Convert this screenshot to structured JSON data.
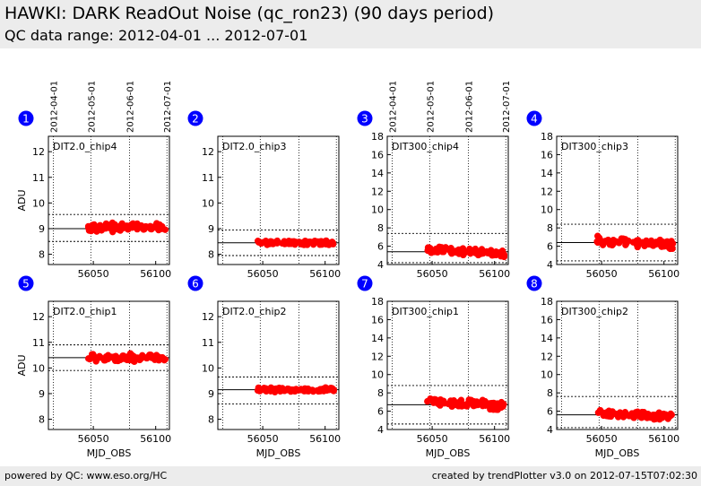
{
  "header": {
    "title": "HAWKI: DARK ReadOut Noise (qc_ron23) (90 days period)",
    "subtitle": "QC data range: 2012-04-01 ... 2012-07-01"
  },
  "footer": {
    "left": "powered by QC: www.eso.org/HC",
    "right": "created by trendPlotter v3.0 on 2012-07-15T07:02:30"
  },
  "colors": {
    "points": "#ff0000",
    "badge": "#0000ff",
    "header_bg": "#ececec"
  },
  "chart_data": [
    {
      "type": "scatter",
      "badge": "1",
      "label": "DIT2.0_chip4",
      "date_ticks": [
        "2012-04-01",
        "2012-05-01",
        "2012-06-01",
        "2012-07-01"
      ],
      "xticks": [
        56050,
        56100
      ],
      "ylabel": "ADU",
      "xlabel": "",
      "xlim": [
        56014,
        56111
      ],
      "ylim": [
        7.6,
        12.6
      ],
      "yticks": [
        8,
        9,
        10,
        11,
        12
      ],
      "mean": 9.0,
      "limits": [
        8.5,
        9.55
      ],
      "x_range": [
        56046,
        56108
      ],
      "y_center": 9.05,
      "y_spread": 0.15
    },
    {
      "type": "scatter",
      "badge": "2",
      "label": "DIT2.0_chip3",
      "date_ticks": [],
      "xticks": [
        56050,
        56100
      ],
      "ylabel": "",
      "xlabel": "",
      "xlim": [
        56014,
        56111
      ],
      "ylim": [
        7.6,
        12.6
      ],
      "yticks": [
        8,
        9,
        10,
        11,
        12
      ],
      "mean": 8.45,
      "limits": [
        7.95,
        8.95
      ],
      "x_range": [
        56046,
        56108
      ],
      "y_center": 8.45,
      "y_spread": 0.08
    },
    {
      "type": "scatter",
      "badge": "3",
      "label": "DIT300_chip4",
      "date_ticks": [
        "2012-04-01",
        "2012-05-01",
        "2012-06-01",
        "2012-07-01"
      ],
      "xticks": [
        56050,
        56100
      ],
      "ylabel": "",
      "xlabel": "",
      "xlim": [
        56014,
        56111
      ],
      "ylim": [
        4,
        18
      ],
      "yticks": [
        4,
        6,
        8,
        10,
        12,
        14,
        16,
        18
      ],
      "mean": 5.4,
      "limits": [
        4.2,
        7.4
      ],
      "x_range": [
        56046,
        56108
      ],
      "y_center": 5.4,
      "y_spread": 0.35
    },
    {
      "type": "scatter",
      "badge": "4",
      "label": "DIT300_chip3",
      "date_ticks": [],
      "xticks": [
        56050,
        56100
      ],
      "ylabel": "",
      "xlabel": "",
      "xlim": [
        56014,
        56111
      ],
      "ylim": [
        4,
        18
      ],
      "yticks": [
        4,
        6,
        8,
        10,
        12,
        14,
        16,
        18
      ],
      "mean": 6.4,
      "limits": [
        4.4,
        8.4
      ],
      "x_range": [
        56046,
        56108
      ],
      "y_center": 6.4,
      "y_spread": 0.45
    },
    {
      "type": "scatter",
      "badge": "5",
      "label": "DIT2.0_chip1",
      "date_ticks": [],
      "xticks": [
        56050,
        56100
      ],
      "ylabel": "ADU",
      "xlabel": "MJD_OBS",
      "xlim": [
        56014,
        56111
      ],
      "ylim": [
        7.6,
        12.6
      ],
      "yticks": [
        8,
        9,
        10,
        11,
        12
      ],
      "mean": 10.4,
      "limits": [
        9.9,
        10.9
      ],
      "x_range": [
        56046,
        56108
      ],
      "y_center": 10.4,
      "y_spread": 0.15
    },
    {
      "type": "scatter",
      "badge": "6",
      "label": "DIT2.0_chip2",
      "date_ticks": [],
      "xticks": [
        56050,
        56100
      ],
      "ylabel": "",
      "xlabel": "MJD_OBS",
      "xlim": [
        56014,
        56111
      ],
      "ylim": [
        7.6,
        12.6
      ],
      "yticks": [
        8,
        9,
        10,
        11,
        12
      ],
      "mean": 9.15,
      "limits": [
        8.6,
        9.65
      ],
      "x_range": [
        56046,
        56108
      ],
      "y_center": 9.15,
      "y_spread": 0.08
    },
    {
      "type": "scatter",
      "badge": "7",
      "label": "DIT300_chip1",
      "date_ticks": [],
      "xticks": [
        56050,
        56100
      ],
      "ylabel": "",
      "xlabel": "MJD_OBS",
      "xlim": [
        56014,
        56111
      ],
      "ylim": [
        4,
        18
      ],
      "yticks": [
        4,
        6,
        8,
        10,
        12,
        14,
        16,
        18
      ],
      "mean": 6.7,
      "limits": [
        4.6,
        8.8
      ],
      "x_range": [
        56046,
        56108
      ],
      "y_center": 6.8,
      "y_spread": 0.45
    },
    {
      "type": "scatter",
      "badge": "8",
      "label": "DIT300_chip2",
      "date_ticks": [],
      "xticks": [
        56050,
        56100
      ],
      "ylabel": "",
      "xlabel": "MJD_OBS",
      "xlim": [
        56014,
        56111
      ],
      "ylim": [
        4,
        18
      ],
      "yticks": [
        4,
        6,
        8,
        10,
        12,
        14,
        16,
        18
      ],
      "mean": 5.6,
      "limits": [
        4.2,
        7.6
      ],
      "x_range": [
        56046,
        56108
      ],
      "y_center": 5.6,
      "y_spread": 0.35
    }
  ]
}
